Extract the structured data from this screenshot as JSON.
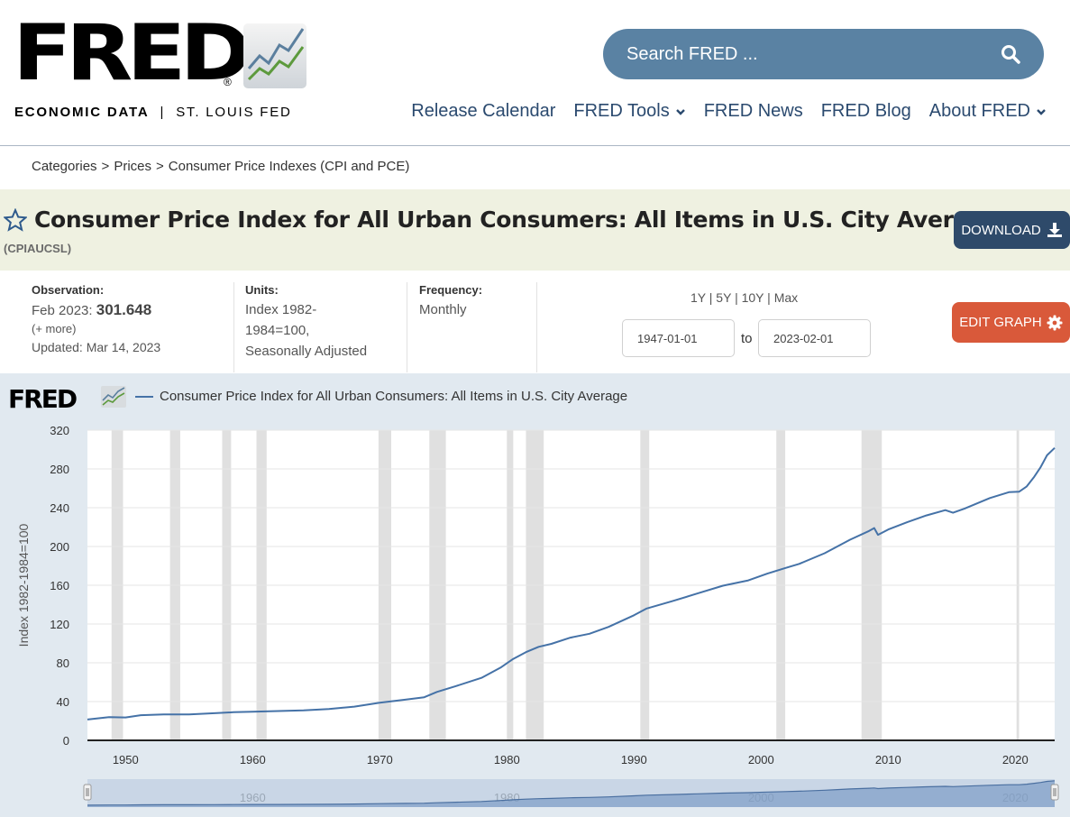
{
  "header": {
    "logo_text": "FRED",
    "logo_reg": "®",
    "tagline_bold": "ECONOMIC DATA",
    "tagline_sep": "|",
    "tagline_rest": "ST. LOUIS FED",
    "search_placeholder": "Search FRED ...",
    "nav": [
      {
        "label": "Release Calendar",
        "dropdown": false
      },
      {
        "label": "FRED Tools",
        "dropdown": true
      },
      {
        "label": "FRED News",
        "dropdown": false
      },
      {
        "label": "FRED Blog",
        "dropdown": false
      },
      {
        "label": "About FRED",
        "dropdown": true
      }
    ]
  },
  "breadcrumb": [
    "Categories",
    "Prices",
    "Consumer Price Indexes (CPI and PCE)"
  ],
  "breadcrumb_sep": ">",
  "series": {
    "title": "Consumer Price Index for All Urban Consumers: All Items in U.S. City Average",
    "id": "(CPIAUCSL)",
    "download_label": "DOWNLOAD"
  },
  "meta": {
    "observation_label": "Observation:",
    "observation_date": "Feb 2023:",
    "observation_value": "301.648",
    "more": "(+ more)",
    "updated": "Updated: Mar 14, 2023",
    "units_label": "Units:",
    "units_lines": [
      "Index 1982-",
      "1984=100,",
      "Seasonally Adjusted"
    ],
    "frequency_label": "Frequency:",
    "frequency": "Monthly"
  },
  "controls": {
    "ranges": [
      "1Y",
      "5Y",
      "10Y",
      "Max"
    ],
    "range_sep": "|",
    "start_date": "1947-01-01",
    "to": "to",
    "end_date": "2023-02-01",
    "edit_label": "EDIT GRAPH"
  },
  "colors": {
    "series": "#4572a7",
    "recession": "#e0e0e0",
    "download_bg": "#2e4a6a",
    "edit_bg": "#d9593a",
    "search_bg": "#5a82a3",
    "title_band": "#eff1e1",
    "graph_bg": "#e1e9f0"
  },
  "chart_data": {
    "type": "line",
    "title": "Consumer Price Index for All Urban Consumers: All Items in U.S. City Average",
    "logo": "FRED",
    "ylabel": "Index 1982-1984=100",
    "xlabel": "",
    "ylim": [
      0,
      320
    ],
    "xlim": [
      1947.0,
      2023.1
    ],
    "yticks": [
      0,
      40,
      80,
      120,
      160,
      200,
      240,
      280,
      320
    ],
    "xticks": [
      1950,
      1960,
      1970,
      1980,
      1990,
      2000,
      2010,
      2020
    ],
    "navigator_ticks": [
      1960,
      1980,
      2000,
      2020
    ],
    "grid": true,
    "legend": "top-left",
    "recessions": [
      [
        1948.9,
        1949.8
      ],
      [
        1953.5,
        1954.3
      ],
      [
        1957.6,
        1958.3
      ],
      [
        1960.3,
        1961.1
      ],
      [
        1969.9,
        1970.9
      ],
      [
        1973.9,
        1975.2
      ],
      [
        1980.0,
        1980.5
      ],
      [
        1981.5,
        1982.9
      ],
      [
        1990.5,
        1991.2
      ],
      [
        2001.2,
        2001.9
      ],
      [
        2007.9,
        2009.5
      ],
      [
        2020.1,
        2020.3
      ]
    ],
    "series": [
      {
        "name": "Consumer Price Index for All Urban Consumers: All Items in U.S. City Average",
        "x": [
          1947.0,
          1948.7,
          1950.0,
          1951.2,
          1953.0,
          1955.0,
          1957.0,
          1958.5,
          1960.0,
          1962.0,
          1964.0,
          1966.0,
          1968.0,
          1970.0,
          1972.0,
          1973.5,
          1974.5,
          1976.0,
          1978.0,
          1979.5,
          1980.5,
          1981.5,
          1982.5,
          1983.5,
          1985.0,
          1986.5,
          1988.0,
          1990.0,
          1991.0,
          1993.0,
          1995.0,
          1997.0,
          1999.0,
          2000.5,
          2001.9,
          2003.0,
          2005.0,
          2006.0,
          2007.0,
          2008.5,
          2008.9,
          2009.2,
          2010.0,
          2011.5,
          2013.0,
          2014.5,
          2015.1,
          2016.0,
          2018.0,
          2019.5,
          2020.3,
          2020.9,
          2021.5,
          2022.0,
          2022.5,
          2023.1
        ],
        "values": [
          21.5,
          24.0,
          23.6,
          26.0,
          26.7,
          26.8,
          28.0,
          29.0,
          29.6,
          30.2,
          31.0,
          32.4,
          34.8,
          38.8,
          42.0,
          44.5,
          50.0,
          56.0,
          64.5,
          75.0,
          84.0,
          91.0,
          96.5,
          99.5,
          106.0,
          110.0,
          117.0,
          129.0,
          136.0,
          143.5,
          151.5,
          159.5,
          165.0,
          172.0,
          177.8,
          182.0,
          193.0,
          200.0,
          207.0,
          216.0,
          219.0,
          212.0,
          217.5,
          225.0,
          232.0,
          237.5,
          234.8,
          239.0,
          250.0,
          256.0,
          256.5,
          262.0,
          272.0,
          282.0,
          294.0,
          301.648
        ]
      }
    ]
  }
}
